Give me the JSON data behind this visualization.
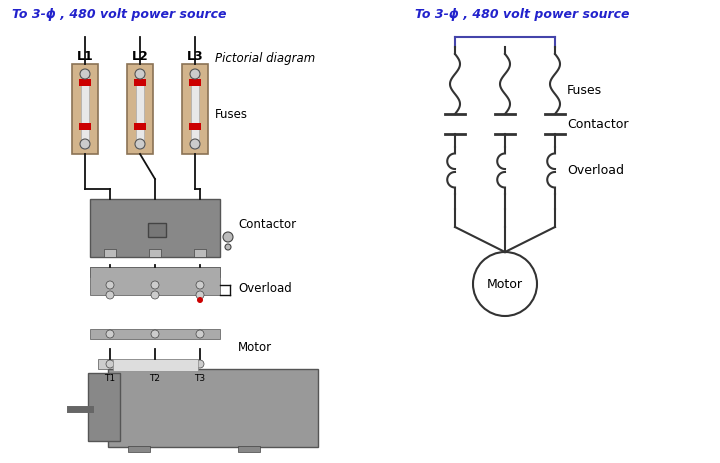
{
  "bg_color": "#ffffff",
  "left_label": "To 3-ϕ , 480 volt power source",
  "right_label": "To 3-ϕ , 480 volt power source",
  "pictorial_label": "Pictorial diagram",
  "fuses_label": "Fuses",
  "contactor_label": "Contactor",
  "overload_label": "Overload",
  "motor_label": "Motor",
  "L1_label": "L1",
  "L2_label": "L2",
  "L3_label": "L3",
  "T1_label": "T1",
  "T2_label": "T2",
  "T3_label": "T3",
  "blue_color": "#2222CC",
  "line_color": "#111111",
  "fuse_bg": "#D2B48C",
  "fuse_edge": "#8B7355",
  "contactor_color": "#888888",
  "overload_color": "#999999",
  "motor_body_color": "#999999",
  "motor_end_color": "#888888",
  "terminal_color": "#bbbbbb",
  "red_color": "#CC0000",
  "schematic_line_color": "#333333"
}
